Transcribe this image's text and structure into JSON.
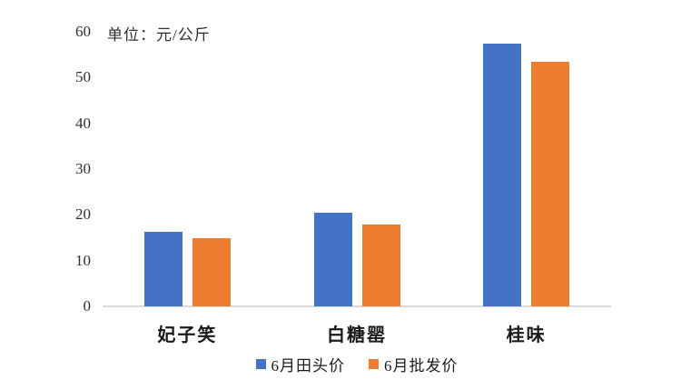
{
  "chart": {
    "unit_label": "单位：元/公斤"
  },
  "chart_data": {
    "type": "bar",
    "title": "单位：元/公斤",
    "categories": [
      "妃子笑",
      "白糖罂",
      "桂味"
    ],
    "series": [
      {
        "name": "6月田头价",
        "color": "#4472C4",
        "values": [
          16.3,
          20.5,
          57.5
        ]
      },
      {
        "name": "6月批发价",
        "color": "#ED7D31",
        "values": [
          15.0,
          17.8,
          53.5
        ]
      }
    ],
    "xlabel": "",
    "ylabel": "",
    "ylim": [
      0,
      60
    ],
    "yticks": [
      0,
      10,
      20,
      30,
      40,
      50,
      60
    ],
    "grid": false,
    "legend_position": "bottom",
    "axis_line_color": "#D9D9D9"
  }
}
